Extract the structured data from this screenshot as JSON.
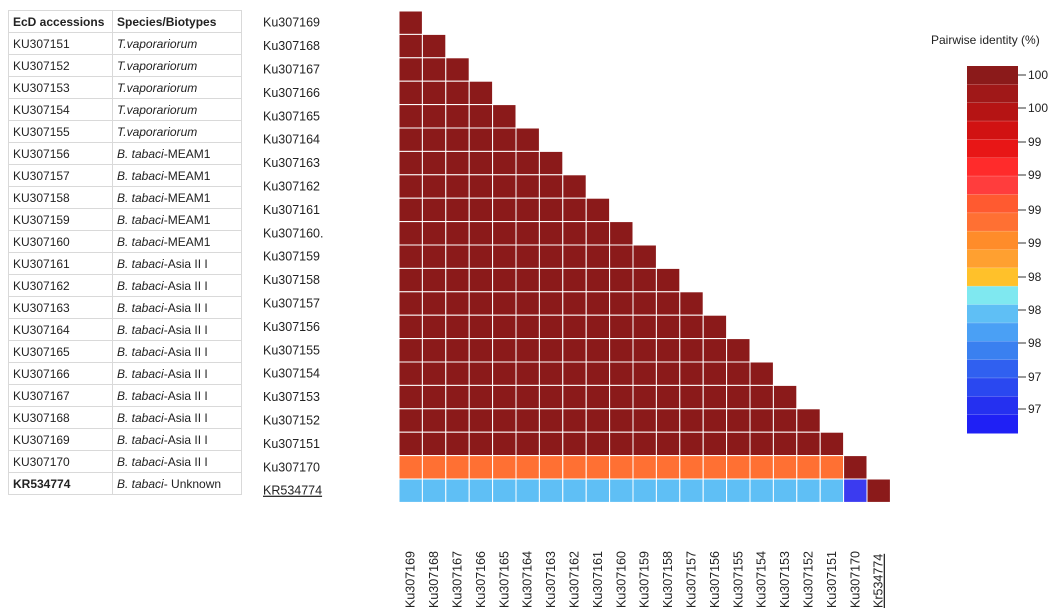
{
  "table": {
    "headers": [
      "EcD accessions",
      "Species/Biotypes"
    ],
    "rows": [
      {
        "accession": "KU307151",
        "species": "T.vaporariorum",
        "species_prefix": "",
        "species_suffix": ""
      },
      {
        "accession": "KU307152",
        "species": "T.vaporariorum",
        "species_prefix": "",
        "species_suffix": ""
      },
      {
        "accession": "KU307153",
        "species": "T.vaporariorum",
        "species_prefix": "",
        "species_suffix": ""
      },
      {
        "accession": "KU307154",
        "species": "T.vaporariorum",
        "species_prefix": "",
        "species_suffix": ""
      },
      {
        "accession": "KU307155",
        "species": "T.vaporariorum",
        "species_prefix": "",
        "species_suffix": ""
      },
      {
        "accession": "KU307156",
        "species": "B. tabaci",
        "species_suffix": "-MEAM1"
      },
      {
        "accession": "KU307157",
        "species": "B. tabaci",
        "species_suffix": "-MEAM1"
      },
      {
        "accession": "KU307158",
        "species": "B. tabaci",
        "species_suffix": "-MEAM1"
      },
      {
        "accession": "KU307159",
        "species": "B. tabaci",
        "species_suffix": "-MEAM1"
      },
      {
        "accession": "KU307160",
        "species": "B. tabaci",
        "species_suffix": "-MEAM1"
      },
      {
        "accession": "KU307161",
        "species": "B. tabaci",
        "species_suffix": "-Asia II I"
      },
      {
        "accession": "KU307162",
        "species": "B. tabaci",
        "species_suffix": "-Asia II I"
      },
      {
        "accession": "KU307163",
        "species": "B. tabaci",
        "species_suffix": "-Asia II I"
      },
      {
        "accession": "KU307164",
        "species": "B. tabaci",
        "species_suffix": "-Asia II I"
      },
      {
        "accession": "KU307165",
        "species": "B. tabaci",
        "species_suffix": "-Asia II I"
      },
      {
        "accession": "KU307166",
        "species": "B. tabaci",
        "species_suffix": "-Asia II I"
      },
      {
        "accession": "KU307167",
        "species": "B. tabaci",
        "species_suffix": "-Asia II I"
      },
      {
        "accession": "KU307168",
        "species": "B. tabaci",
        "species_suffix": "-Asia II I"
      },
      {
        "accession": "KU307169",
        "species": "B. tabaci",
        "species_suffix": "-Asia II I"
      },
      {
        "accession": "KU307170",
        "species": "B. tabaci",
        "species_suffix": "-Asia II I"
      },
      {
        "accession": "KR534774",
        "species": "B. tabaci",
        "species_suffix": "- Unknown",
        "bold": true
      }
    ]
  },
  "chart_data": {
    "type": "heatmap",
    "row_labels": [
      "Ku307169",
      "Ku307168",
      "Ku307167",
      "Ku307166",
      "Ku307165",
      "Ku307164",
      "Ku307163",
      "Ku307162",
      "Ku307161",
      "Ku307160.",
      "Ku307159",
      "Ku307158",
      "Ku307157",
      "Ku307156",
      "Ku307155",
      "Ku307154",
      "Ku307153",
      "Ku307152",
      "Ku307151",
      "Ku307170",
      "KR534774"
    ],
    "col_labels": [
      "Ku307169",
      "Ku307168",
      "Ku307167",
      "Ku307166",
      "Ku307165",
      "Ku307164",
      "Ku307163",
      "Ku307162",
      "Ku307161",
      "Ku307160",
      "Ku307159",
      "Ku307158",
      "Ku307157",
      "Ku307156",
      "Ku307155",
      "Ku307154",
      "Ku307153",
      "Ku307152",
      "Ku307151",
      "Ku307170",
      "Kr534774"
    ],
    "underlined_labels": [
      "KR534774",
      "Kr534774"
    ],
    "row_values": [
      [
        100
      ],
      [
        100,
        100
      ],
      [
        100,
        100,
        100
      ],
      [
        100,
        100,
        100,
        100
      ],
      [
        100,
        100,
        100,
        100,
        100
      ],
      [
        100,
        100,
        100,
        100,
        100,
        100
      ],
      [
        100,
        100,
        100,
        100,
        100,
        100,
        100
      ],
      [
        100,
        100,
        100,
        100,
        100,
        100,
        100,
        100
      ],
      [
        100,
        100,
        100,
        100,
        100,
        100,
        100,
        100,
        100
      ],
      [
        100,
        100,
        100,
        100,
        100,
        100,
        100,
        100,
        100,
        100
      ],
      [
        100,
        100,
        100,
        100,
        100,
        100,
        100,
        100,
        100,
        100,
        100
      ],
      [
        100,
        100,
        100,
        100,
        100,
        100,
        100,
        100,
        100,
        100,
        100,
        100
      ],
      [
        100,
        100,
        100,
        100,
        100,
        100,
        100,
        100,
        100,
        100,
        100,
        100,
        100
      ],
      [
        100,
        100,
        100,
        100,
        100,
        100,
        100,
        100,
        100,
        100,
        100,
        100,
        100,
        100
      ],
      [
        100,
        100,
        100,
        100,
        100,
        100,
        100,
        100,
        100,
        100,
        100,
        100,
        100,
        100,
        100
      ],
      [
        100,
        100,
        100,
        100,
        100,
        100,
        100,
        100,
        100,
        100,
        100,
        100,
        100,
        100,
        100,
        100
      ],
      [
        100,
        100,
        100,
        100,
        100,
        100,
        100,
        100,
        100,
        100,
        100,
        100,
        100,
        100,
        100,
        100,
        100
      ],
      [
        100,
        100,
        100,
        100,
        100,
        100,
        100,
        100,
        100,
        100,
        100,
        100,
        100,
        100,
        100,
        100,
        100,
        100
      ],
      [
        100,
        100,
        100,
        100,
        100,
        100,
        100,
        100,
        100,
        100,
        100,
        100,
        100,
        100,
        100,
        100,
        100,
        100,
        100
      ],
      [
        98.8,
        98.8,
        98.8,
        98.8,
        98.8,
        98.8,
        98.8,
        98.8,
        98.8,
        98.8,
        98.8,
        98.8,
        98.8,
        98.8,
        98.8,
        98.8,
        98.8,
        98.8,
        98.8,
        100
      ],
      [
        98.0,
        98.0,
        98.0,
        98.0,
        98.0,
        98.0,
        98.0,
        98.0,
        98.0,
        98.0,
        98.0,
        98.0,
        98.0,
        98.0,
        98.0,
        98.0,
        98.0,
        98.0,
        98.0,
        97.0,
        100
      ]
    ],
    "cell_colors": {
      "100": "#8b1a1a",
      "98.8": "#ff7033",
      "98.0": "#5fbff5",
      "97.0": "#3b3bf0"
    },
    "legend": {
      "title": "Pairwise identity (%)",
      "tick_labels": [
        "100",
        "100",
        "99",
        "99",
        "99",
        "99",
        "98",
        "98",
        "98",
        "97",
        "97"
      ],
      "colors": [
        "#8b1a1a",
        "#a01818",
        "#b51414",
        "#d11212",
        "#e81616",
        "#ff2b2b",
        "#ff3d3d",
        "#ff5a30",
        "#ff7033",
        "#ff8c2a",
        "#ffa030",
        "#ffc12a",
        "#7fe8f0",
        "#5fbff5",
        "#4aa0f5",
        "#3a80f0",
        "#3060f0",
        "#2a48f0",
        "#2530f0",
        "#1f20f5"
      ]
    }
  }
}
